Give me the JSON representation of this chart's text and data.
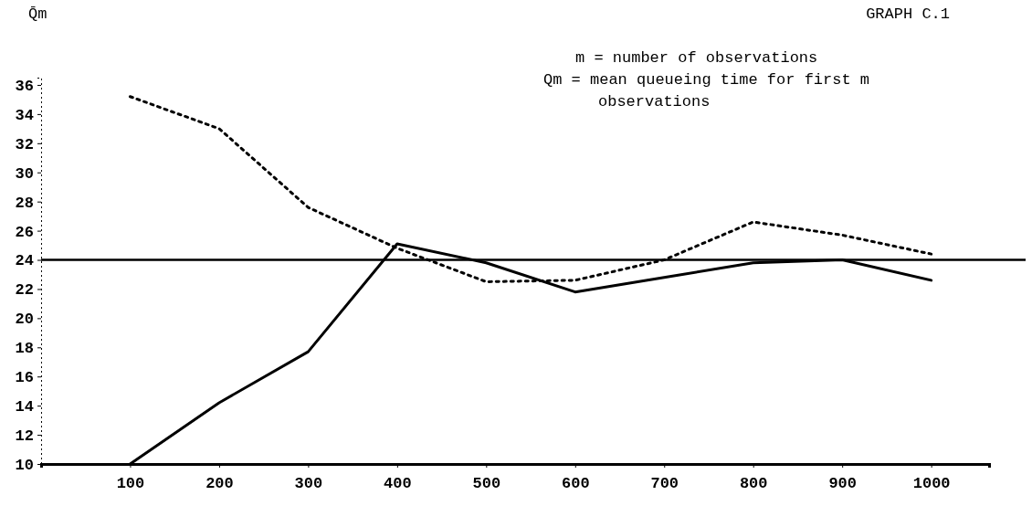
{
  "chart_data": {
    "type": "line",
    "title": "GRAPH C.1",
    "ylabel": "Q̄m",
    "annotations": [
      "m = number of observations",
      "Qm = mean queueing time for first m observations"
    ],
    "x": [
      100,
      200,
      300,
      400,
      500,
      600,
      700,
      800,
      900,
      1000
    ],
    "series": [
      {
        "color": "#000000",
        "line_style": "solid",
        "values": [
          10,
          14.2,
          17.7,
          25.1,
          23.8,
          21.8,
          22.8,
          23.8,
          24,
          22.6
        ]
      },
      {
        "color": "#000000",
        "line_style": "dotted",
        "values": [
          35.2,
          33,
          27.6,
          24.8,
          22.5,
          22.6,
          24,
          26.6,
          25.7,
          24.4
        ]
      }
    ],
    "xlim": [
      0,
      1065
    ],
    "ylim": [
      10,
      36.5
    ],
    "xticks": [
      100,
      200,
      300,
      400,
      500,
      600,
      700,
      800,
      900,
      1000
    ],
    "yticks": [
      10,
      12,
      14,
      16,
      18,
      20,
      22,
      24,
      26,
      28,
      30,
      32,
      34,
      36
    ],
    "ref_lines": [
      {
        "axis": "y",
        "value": 24,
        "color": "#000000"
      }
    ],
    "grid": false,
    "marker": "none"
  }
}
